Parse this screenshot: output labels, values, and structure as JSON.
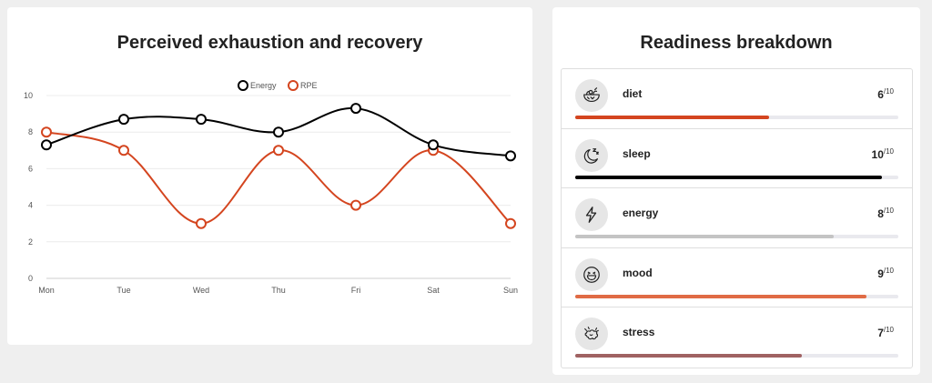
{
  "chart_card": {
    "title": "Perceived exhaustion and recovery"
  },
  "chart_data": {
    "type": "line",
    "categories": [
      "Mon",
      "Tue",
      "Wed",
      "Thu",
      "Fri",
      "Sat",
      "Sun"
    ],
    "series": [
      {
        "name": "Energy",
        "color": "#000000",
        "values": [
          7.3,
          8.7,
          8.7,
          8,
          9.3,
          7.3,
          6.7
        ]
      },
      {
        "name": "RPE",
        "color": "#d4451f",
        "values": [
          8,
          7,
          3,
          7,
          4,
          7,
          3
        ]
      }
    ],
    "ylim": [
      0,
      10
    ],
    "yticks": [
      0,
      2,
      4,
      6,
      8,
      10
    ],
    "grid": true,
    "legend": "top-center",
    "curve": "smooth"
  },
  "readiness": {
    "title": "Readiness breakdown",
    "items": [
      {
        "label": "diet",
        "score": "6",
        "max": "/10",
        "value": 0.6,
        "color": "#d4451f",
        "icon": "salad-bowl-icon"
      },
      {
        "label": "sleep",
        "score": "10",
        "max": "/10",
        "value": 0.95,
        "color": "#000000",
        "icon": "moon-sleep-icon"
      },
      {
        "label": "energy",
        "score": "8",
        "max": "/10",
        "value": 0.8,
        "color": "#c4c4c4",
        "icon": "lightning-icon"
      },
      {
        "label": "mood",
        "score": "9",
        "max": "/10",
        "value": 0.9,
        "color": "#e06b45",
        "icon": "laughing-face-icon"
      },
      {
        "label": "stress",
        "score": "7",
        "max": "/10",
        "value": 0.7,
        "color": "#a06262",
        "icon": "stressed-brain-icon"
      }
    ]
  }
}
